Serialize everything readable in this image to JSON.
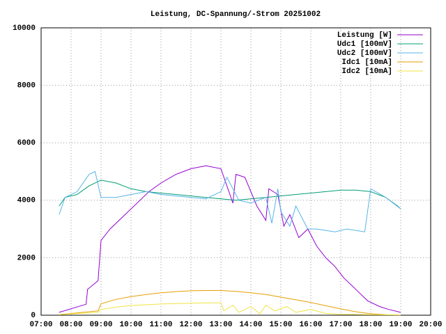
{
  "chart_data": {
    "type": "line",
    "title": "Leistung, DC-Spannung/-Strom 20251002",
    "xlim": [
      7,
      20
    ],
    "ylim": [
      0,
      10000
    ],
    "xticks": [
      {
        "value": 7,
        "label": "07:00"
      },
      {
        "value": 8,
        "label": "08:00"
      },
      {
        "value": 9,
        "label": "09:00"
      },
      {
        "value": 10,
        "label": "10:00"
      },
      {
        "value": 11,
        "label": "11:00"
      },
      {
        "value": 12,
        "label": "12:00"
      },
      {
        "value": 13,
        "label": "13:00"
      },
      {
        "value": 14,
        "label": "14:00"
      },
      {
        "value": 15,
        "label": "15:00"
      },
      {
        "value": 16,
        "label": "16:00"
      },
      {
        "value": 17,
        "label": "17:00"
      },
      {
        "value": 18,
        "label": "18:00"
      },
      {
        "value": 19,
        "label": "19:00"
      },
      {
        "value": 20,
        "label": "20:00"
      }
    ],
    "yticks": [
      0,
      2000,
      4000,
      6000,
      8000,
      10000
    ],
    "grid": true,
    "legend": "top-right",
    "series": [
      {
        "name": "Leistung [W]",
        "color": "#9400d3",
        "x": [
          7.6,
          8.5,
          8.55,
          8.9,
          9.0,
          9.3,
          9.8,
          10.3,
          10.6,
          11.0,
          11.5,
          12.0,
          12.5,
          13.0,
          13.4,
          13.5,
          13.8,
          14.2,
          14.5,
          14.6,
          14.9,
          15.1,
          15.3,
          15.6,
          15.9,
          16.2,
          16.5,
          16.8,
          17.1,
          17.5,
          17.9,
          18.3,
          18.6,
          19.0
        ],
        "values": [
          100,
          380,
          900,
          1200,
          2600,
          3000,
          3500,
          4000,
          4300,
          4600,
          4900,
          5100,
          5200,
          5100,
          3900,
          4900,
          4800,
          3800,
          3300,
          4400,
          4200,
          3100,
          3500,
          2700,
          3000,
          2400,
          2000,
          1700,
          1300,
          900,
          500,
          300,
          200,
          100
        ]
      },
      {
        "name": "Udc1 [100mV]",
        "color": "#009e73",
        "x": [
          7.6,
          7.8,
          8.2,
          8.6,
          9.0,
          9.5,
          10.0,
          10.5,
          11.0,
          11.5,
          12.0,
          12.5,
          13.0,
          13.5,
          14.0,
          14.5,
          15.0,
          15.5,
          16.0,
          16.5,
          17.0,
          17.5,
          18.0,
          18.5,
          18.9,
          19.0
        ],
        "values": [
          3800,
          4100,
          4200,
          4500,
          4700,
          4600,
          4400,
          4300,
          4250,
          4200,
          4150,
          4100,
          4050,
          4000,
          4050,
          4100,
          4150,
          4200,
          4250,
          4300,
          4350,
          4350,
          4300,
          4100,
          3800,
          3700
        ]
      },
      {
        "name": "Udc2 [100mV]",
        "color": "#56b4e9",
        "x": [
          7.6,
          7.8,
          8.2,
          8.6,
          8.8,
          9.0,
          9.5,
          10.0,
          10.5,
          11.0,
          12.0,
          12.5,
          13.0,
          13.2,
          13.4,
          13.6,
          14.0,
          14.5,
          14.7,
          14.9,
          15.0,
          15.3,
          15.5,
          15.9,
          16.2,
          16.8,
          17.2,
          17.8,
          18.0,
          18.5,
          19.0
        ],
        "values": [
          3500,
          4100,
          4300,
          4900,
          5000,
          4100,
          4100,
          4200,
          4300,
          4200,
          4100,
          4050,
          4300,
          4800,
          4400,
          4000,
          3900,
          4100,
          3200,
          4400,
          3600,
          3100,
          3800,
          3000,
          3000,
          2900,
          3000,
          2900,
          4400,
          4100,
          3700
        ]
      },
      {
        "name": "Idc1 [10mA]",
        "color": "#e69f00",
        "x": [
          7.6,
          8.0,
          8.9,
          9.0,
          9.5,
          10.0,
          10.5,
          11.0,
          11.5,
          12.0,
          12.5,
          13.0,
          13.5,
          14.0,
          14.5,
          15.0,
          15.5,
          16.0,
          16.5,
          17.0,
          17.5,
          18.0,
          18.5,
          19.0
        ],
        "values": [
          20,
          60,
          150,
          400,
          550,
          650,
          720,
          780,
          820,
          850,
          860,
          860,
          830,
          780,
          720,
          630,
          540,
          440,
          330,
          220,
          120,
          50,
          20,
          10
        ]
      },
      {
        "name": "Idc2 [10mA]",
        "color": "#f0e442",
        "x": [
          7.6,
          8.9,
          9.0,
          9.5,
          10.0,
          11.0,
          12.0,
          12.5,
          13.0,
          13.1,
          13.4,
          13.6,
          14.0,
          14.3,
          14.5,
          14.8,
          15.2,
          15.5,
          16.0,
          16.5,
          17.0,
          18.0,
          19.0
        ],
        "values": [
          20,
          100,
          200,
          280,
          340,
          390,
          420,
          430,
          430,
          150,
          350,
          100,
          300,
          50,
          350,
          150,
          300,
          100,
          200,
          60,
          30,
          20,
          10
        ]
      }
    ]
  }
}
